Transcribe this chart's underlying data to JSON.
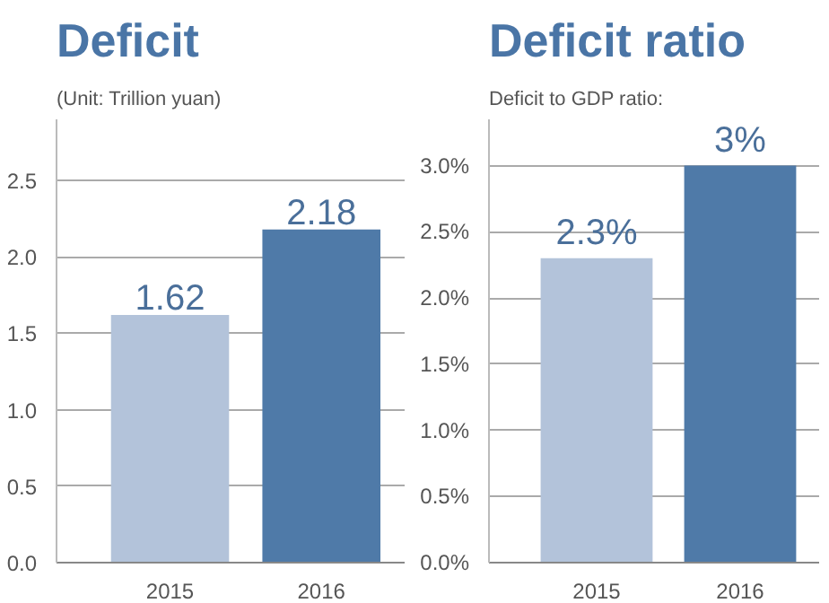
{
  "chart_data": [
    {
      "type": "bar",
      "title": "Deficit",
      "subtitle": "(Unit: Trillion yuan)",
      "categories": [
        "2015",
        "2016"
      ],
      "values": [
        1.62,
        2.18
      ],
      "colors": [
        "#b3c3da",
        "#4f7aa8"
      ],
      "ylim": [
        0,
        2.9
      ],
      "yticks": [
        {
          "value": 0,
          "label": "0.0"
        },
        {
          "value": 0.5,
          "label": "0.5"
        },
        {
          "value": 1,
          "label": "1.0"
        },
        {
          "value": 1.5,
          "label": "1.5"
        },
        {
          "value": 2,
          "label": "2.0"
        },
        {
          "value": 2.5,
          "label": "2.5"
        }
      ],
      "grid": "y",
      "data_labels": true
    },
    {
      "type": "bar",
      "title": "Deficit ratio",
      "subtitle": "Deficit to GDP ratio:",
      "categories": [
        "2015",
        "2016"
      ],
      "values": [
        2.3,
        3
      ],
      "value_labels": [
        "2.3%",
        "3%"
      ],
      "colors": [
        "#b3c3da",
        "#4f7aa8"
      ],
      "ylim": [
        0,
        3.35
      ],
      "yticks": [
        {
          "value": 0,
          "label": "0.0%"
        },
        {
          "value": 0.5,
          "label": "0.5%"
        },
        {
          "value": 1,
          "label": "1.0%"
        },
        {
          "value": 1.5,
          "label": "1.5%"
        },
        {
          "value": 2,
          "label": "2.0%"
        },
        {
          "value": 2.5,
          "label": "2.5%"
        },
        {
          "value": 3,
          "label": "3.0%"
        }
      ],
      "grid": "y"
    }
  ]
}
